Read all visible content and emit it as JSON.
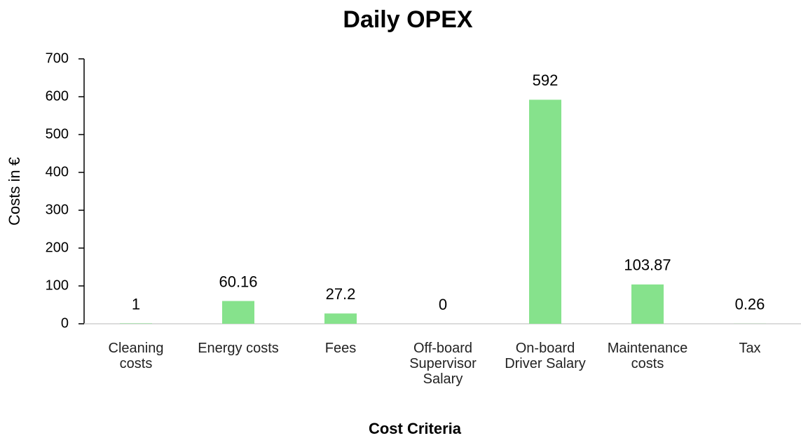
{
  "chart_data": {
    "type": "bar",
    "title": "Daily OPEX",
    "x_label": "Cost Criteria",
    "y_label": "Costs in €",
    "categories": [
      "Cleaning costs",
      "Energy costs",
      "Fees",
      "Off-board Supervisor Salary",
      "On-board Driver Salary",
      "Maintenance costs",
      "Tax"
    ],
    "values": [
      1,
      60.16,
      27.2,
      0,
      592,
      103.87,
      0.26
    ],
    "color": "#86e28c",
    "ylim": [
      0,
      700
    ],
    "yticks": [
      0,
      100,
      200,
      300,
      400,
      500,
      600,
      700
    ],
    "grid": false
  }
}
